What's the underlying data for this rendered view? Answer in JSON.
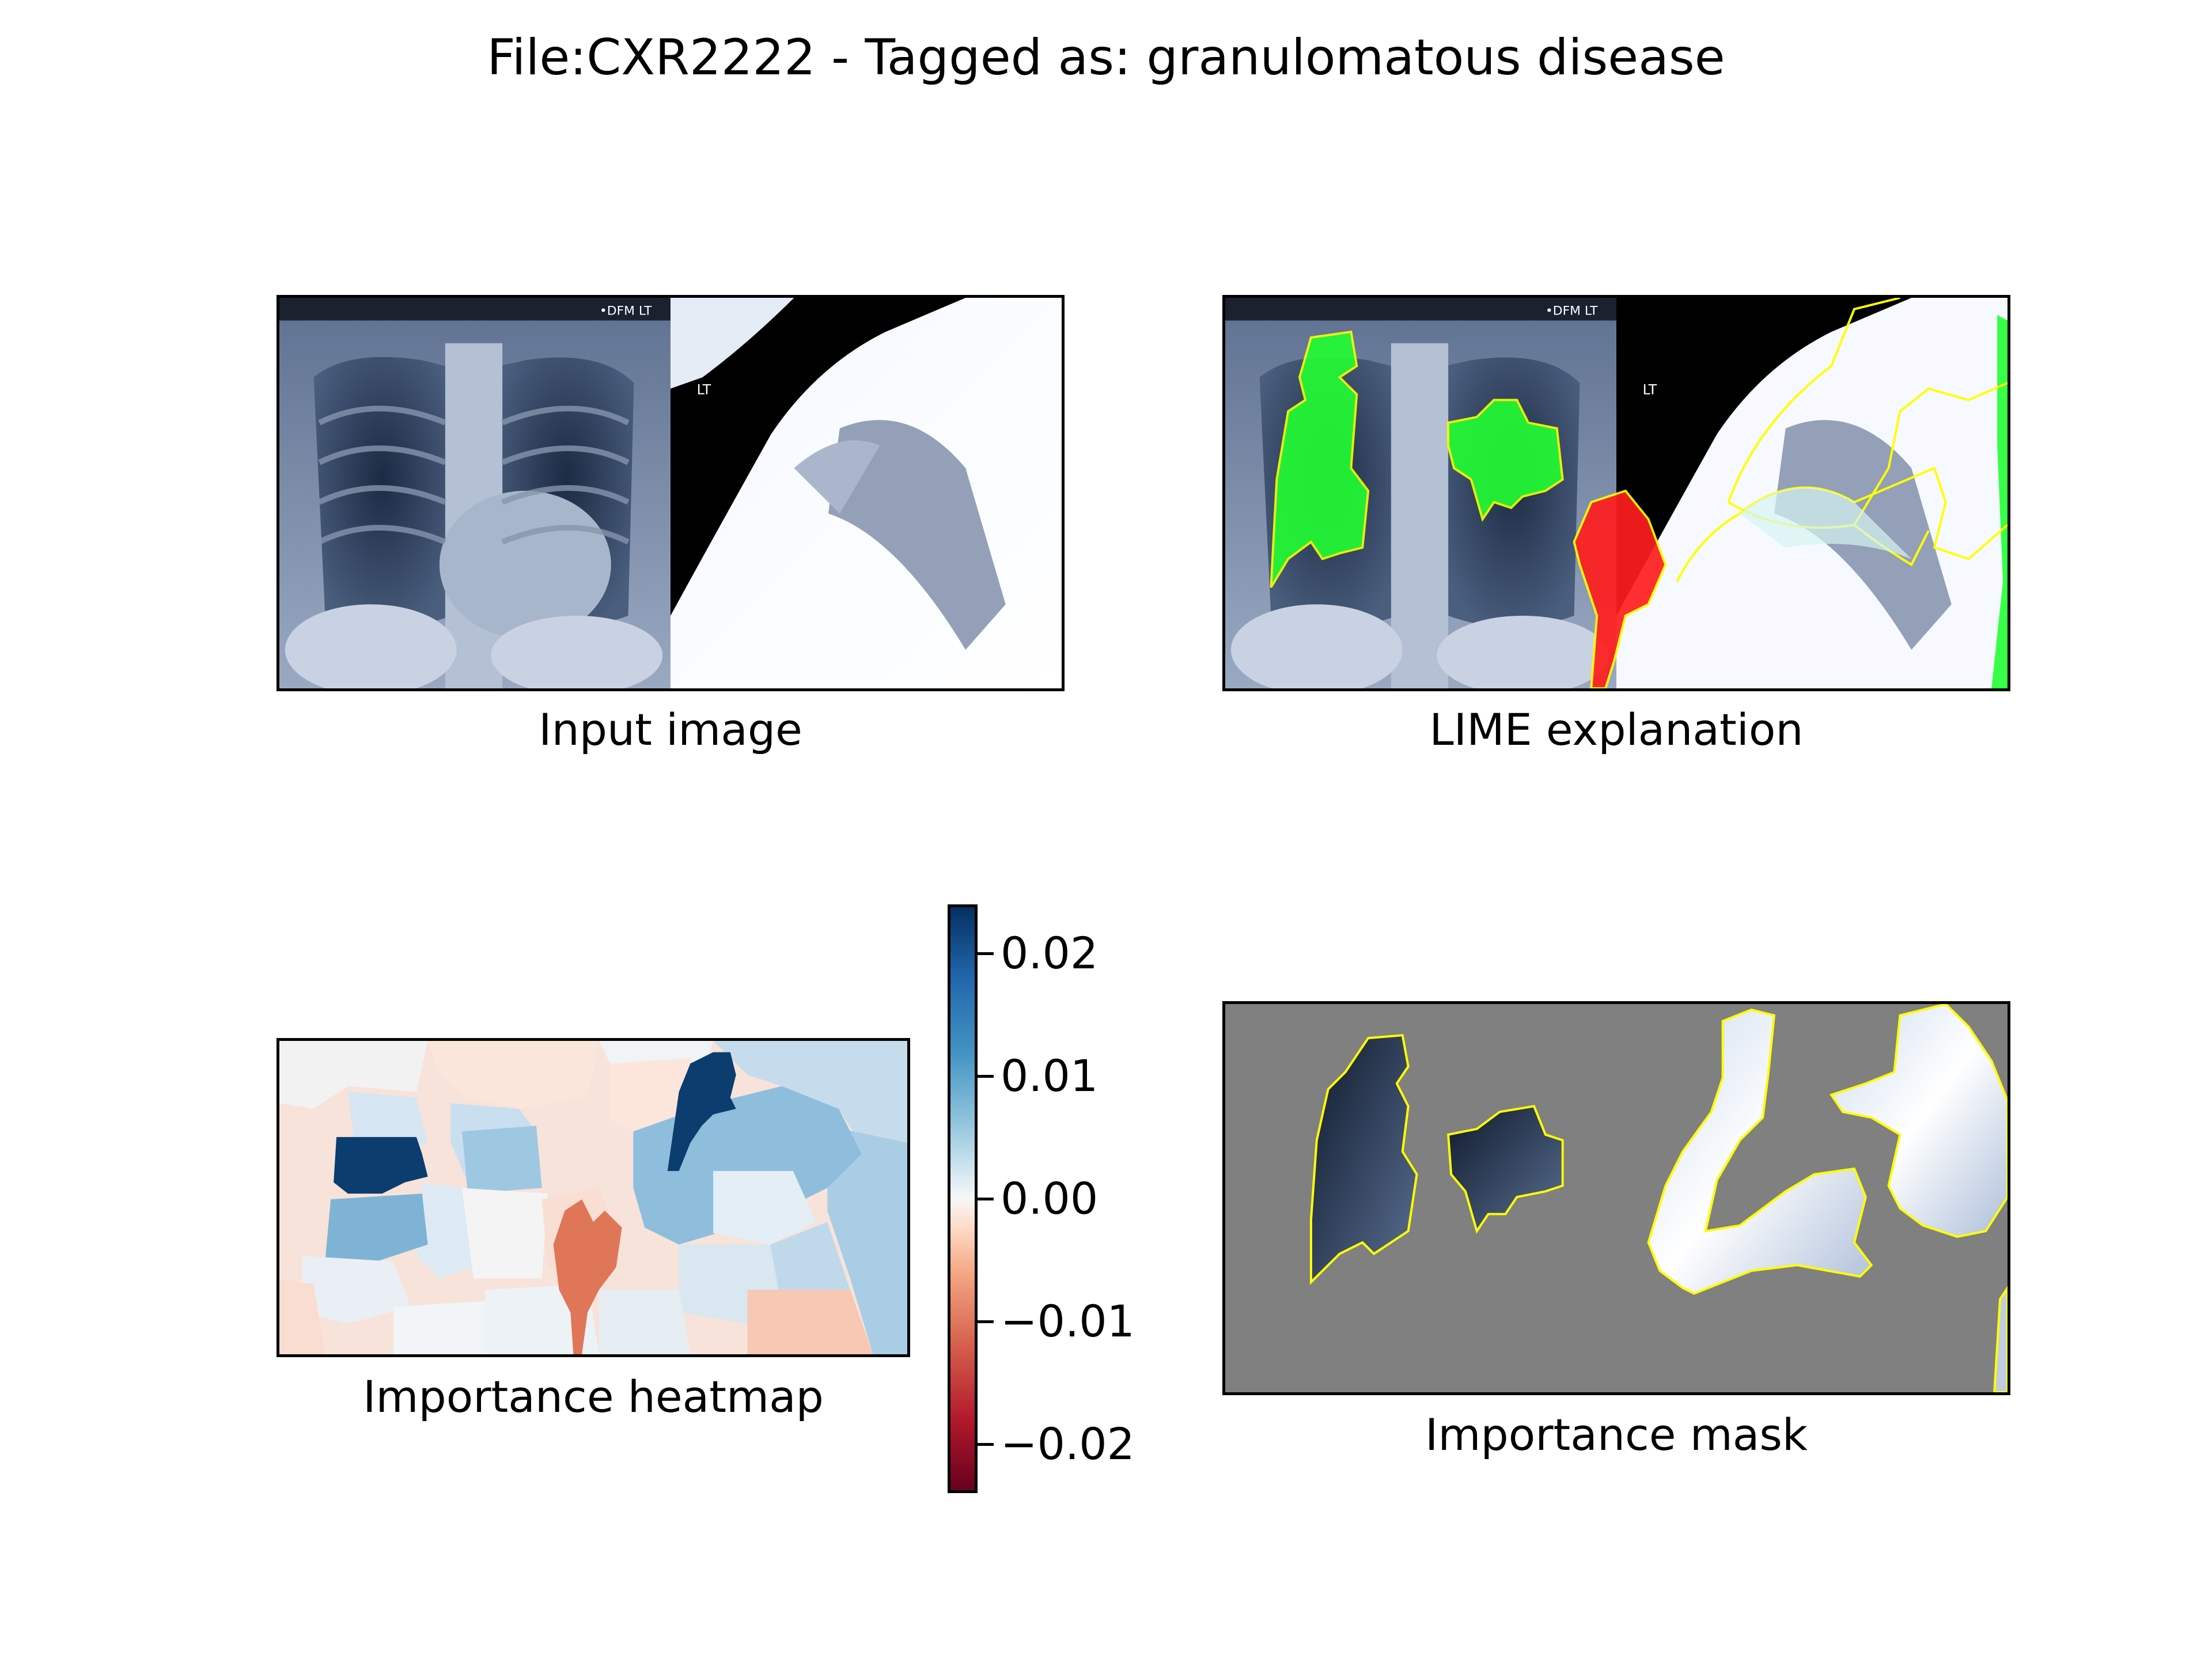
{
  "title": "File:CXR2222 - Tagged as: granulomatous disease",
  "panels": {
    "input": {
      "caption": "Input image"
    },
    "lime": {
      "caption": "LIME explanation"
    },
    "heatmap": {
      "caption": "Importance heatmap"
    },
    "mask": {
      "caption": "Importance mask"
    }
  },
  "xray_labels": {
    "marker_top": "•DFM LT",
    "marker_side": "LT"
  },
  "chart_data": {
    "type": "heatmap",
    "title": "File:CXR2222 - Tagged as: granulomatous disease",
    "colorbar": {
      "cmap": "RdBu",
      "range": [
        -0.024,
        0.024
      ],
      "ticks": [
        0.02,
        0.01,
        0.0,
        -0.01,
        -0.02
      ],
      "tick_labels": [
        "0.02",
        "0.01",
        "0.00",
        "−0.01",
        "−0.02"
      ]
    },
    "colors": {
      "positive_overlay": "#22ff33",
      "negative_overlay": "#ff1e1e",
      "boundary": "#ffff00",
      "mask_background": "#808080"
    }
  }
}
